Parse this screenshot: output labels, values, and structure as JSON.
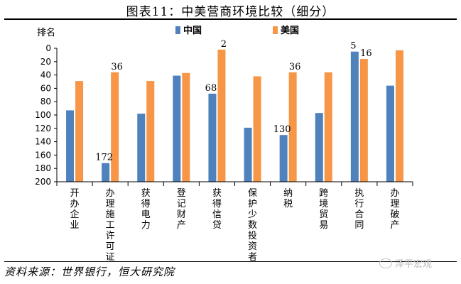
{
  "title": "图表11：中美营商环境比较（细分）",
  "source": "资料来源：世界银行，恒大研究院",
  "watermark": "泽平宏观",
  "colors": {
    "china": "#4f81bd",
    "usa": "#f79646"
  },
  "chart_data": {
    "type": "bar",
    "ylabel": "排名",
    "ylim": [
      0,
      200
    ],
    "y_inverted": true,
    "yticks": [
      0,
      20,
      40,
      60,
      80,
      100,
      120,
      140,
      160,
      180,
      200
    ],
    "legend_position": "top",
    "categories": [
      "开办企业",
      "办理施工许可证",
      "获得电力",
      "登记财产",
      "获得信贷",
      "保护少数投资者",
      "纳税",
      "跨境贸易",
      "执行合同",
      "办理破产"
    ],
    "series": [
      {
        "name": "中国",
        "values": [
          93,
          172,
          98,
          41,
          68,
          119,
          130,
          97,
          5,
          56
        ],
        "labels": [
          "",
          "172",
          "",
          "",
          "68",
          "",
          "130",
          "",
          "5",
          ""
        ]
      },
      {
        "name": "美国",
        "values": [
          49,
          36,
          49,
          37,
          2,
          42,
          36,
          36,
          16,
          3
        ],
        "labels": [
          "",
          "36",
          "",
          "",
          "2",
          "",
          "36",
          "",
          "16",
          ""
        ]
      }
    ]
  }
}
